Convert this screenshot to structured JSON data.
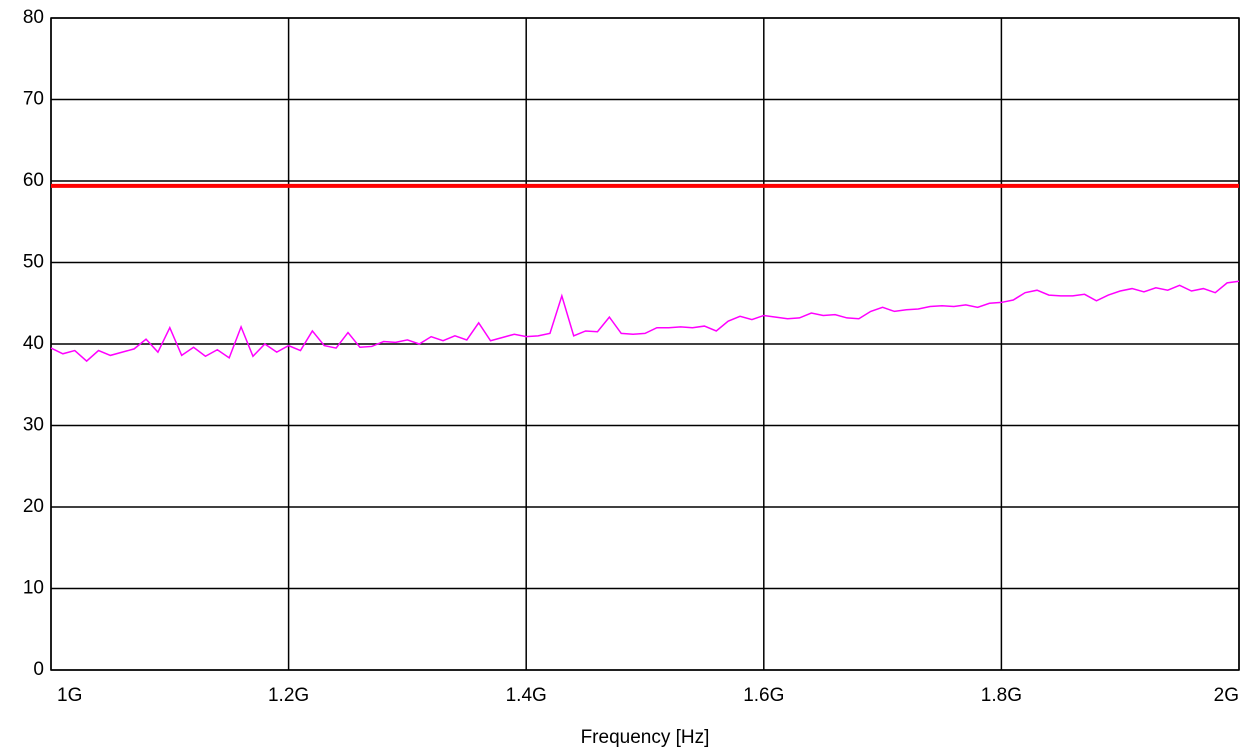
{
  "chart_data": {
    "type": "line",
    "xlabel": "Frequency [Hz]",
    "x": [
      1.0,
      1.01,
      1.02,
      1.03,
      1.04,
      1.05,
      1.06,
      1.07,
      1.08,
      1.09,
      1.1,
      1.11,
      1.12,
      1.13,
      1.14,
      1.15,
      1.16,
      1.17,
      1.18,
      1.19,
      1.2,
      1.21,
      1.22,
      1.23,
      1.24,
      1.25,
      1.26,
      1.27,
      1.28,
      1.29,
      1.3,
      1.31,
      1.32,
      1.33,
      1.34,
      1.35,
      1.36,
      1.37,
      1.38,
      1.39,
      1.4,
      1.41,
      1.42,
      1.43,
      1.44,
      1.45,
      1.46,
      1.47,
      1.48,
      1.49,
      1.5,
      1.51,
      1.52,
      1.53,
      1.54,
      1.55,
      1.56,
      1.57,
      1.58,
      1.59,
      1.6,
      1.61,
      1.62,
      1.63,
      1.64,
      1.65,
      1.66,
      1.67,
      1.68,
      1.69,
      1.7,
      1.71,
      1.72,
      1.73,
      1.74,
      1.75,
      1.76,
      1.77,
      1.78,
      1.79,
      1.8,
      1.81,
      1.82,
      1.83,
      1.84,
      1.85,
      1.86,
      1.87,
      1.88,
      1.89,
      1.9,
      1.91,
      1.92,
      1.93,
      1.94,
      1.95,
      1.96,
      1.97,
      1.98,
      1.99,
      2.0
    ],
    "series": [
      {
        "color": "#ff00ff",
        "values": [
          39.5,
          38.8,
          39.2,
          37.9,
          39.2,
          38.6,
          39.0,
          39.4,
          40.6,
          39.0,
          42.0,
          38.6,
          39.6,
          38.5,
          39.3,
          38.3,
          42.1,
          38.5,
          40.0,
          39.0,
          39.8,
          39.2,
          41.6,
          39.8,
          39.5,
          41.4,
          39.6,
          39.7,
          40.3,
          40.2,
          40.5,
          40.0,
          40.9,
          40.4,
          41.0,
          40.5,
          42.6,
          40.4,
          40.8,
          41.2,
          40.9,
          41.0,
          41.3,
          45.9,
          41.0,
          41.6,
          41.5,
          43.3,
          41.3,
          41.2,
          41.3,
          42.0,
          42.0,
          42.1,
          42.0,
          42.2,
          41.6,
          42.8,
          43.4,
          43.0,
          43.5,
          43.3,
          43.1,
          43.2,
          43.8,
          43.5,
          43.6,
          43.2,
          43.1,
          44.0,
          44.5,
          44.0,
          44.2,
          44.3,
          44.6,
          44.7,
          44.6,
          44.8,
          44.5,
          45.0,
          45.1,
          45.4,
          46.3,
          46.6,
          46.0,
          45.9,
          45.9,
          46.1,
          45.3,
          46.0,
          46.5,
          46.8,
          46.4,
          46.9,
          46.6,
          47.2,
          46.5,
          46.8,
          46.3,
          47.5,
          47.7
        ]
      }
    ],
    "reference_lines": [
      {
        "value": 59.4,
        "color": "#ff0000"
      }
    ],
    "xlim": [
      1,
      2
    ],
    "xticks": [
      {
        "value": 1,
        "label": "1G"
      },
      {
        "value": 1.2,
        "label": "1.2G"
      },
      {
        "value": 1.4,
        "label": "1.4G"
      },
      {
        "value": 1.6,
        "label": "1.6G"
      },
      {
        "value": 1.8,
        "label": "1.8G"
      },
      {
        "value": 2,
        "label": "2G"
      }
    ],
    "ylim": [
      0,
      80
    ],
    "yticks": [
      0,
      10,
      20,
      30,
      40,
      50,
      60,
      70,
      80
    ],
    "grid": true
  }
}
